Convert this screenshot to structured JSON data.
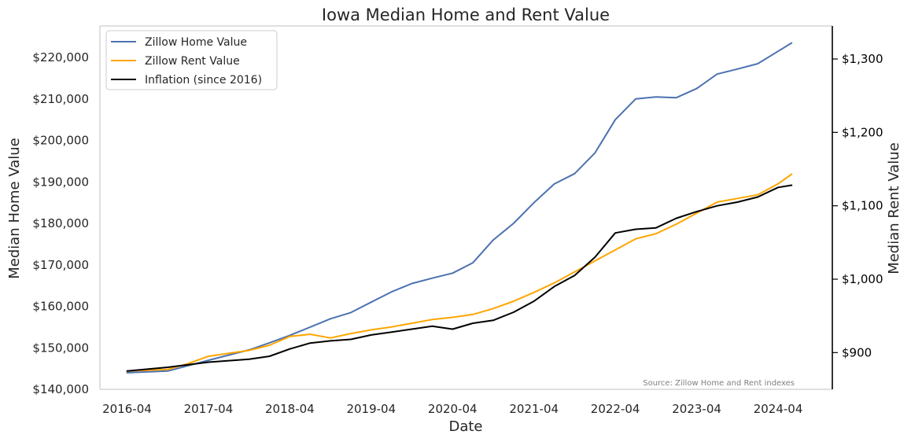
{
  "chart_data": {
    "type": "line",
    "title": "Iowa Median Home and Rent Value",
    "xlabel": "Date",
    "ylabel_left": "Median Home Value",
    "ylabel_right": "Median Rent Value",
    "source_note": "Source: Zillow Home and Rent indexes",
    "x_ticks": [
      "2016-04",
      "2017-04",
      "2018-04",
      "2019-04",
      "2020-04",
      "2021-04",
      "2022-04",
      "2023-04",
      "2024-04"
    ],
    "x_range": [
      "2015-12",
      "2024-12"
    ],
    "y_left": {
      "range": [
        140000,
        227600
      ],
      "ticks": [
        140000,
        150000,
        160000,
        170000,
        180000,
        190000,
        200000,
        210000,
        220000
      ],
      "tick_labels": [
        "$140,000",
        "$150,000",
        "$160,000",
        "$170,000",
        "$180,000",
        "$190,000",
        "$200,000",
        "$210,000",
        "$220,000"
      ]
    },
    "y_right": {
      "range": [
        850,
        1345
      ],
      "ticks": [
        900,
        1000,
        1100,
        1200,
        1300
      ],
      "tick_labels": [
        "$900",
        "$1,000",
        "$1,100",
        "$1,200",
        "$1,300"
      ]
    },
    "grid": false,
    "legend_position": "top-left",
    "legend": [
      {
        "label": "Zillow Home Value",
        "color": "#4c72b0"
      },
      {
        "label": "Zillow Rent Value",
        "color": "#ffa500"
      },
      {
        "label": "Inflation (since 2016)",
        "color": "#000000"
      }
    ],
    "series": [
      {
        "name": "Zillow Home Value",
        "axis": "left",
        "color": "#4c72b0",
        "points": [
          [
            "2016-04",
            144000
          ],
          [
            "2016-10",
            144400
          ],
          [
            "2017-04",
            147000
          ],
          [
            "2017-10",
            149500
          ],
          [
            "2018-01",
            151200
          ],
          [
            "2018-04",
            153000
          ],
          [
            "2018-07",
            155000
          ],
          [
            "2018-10",
            157000
          ],
          [
            "2019-01",
            158500
          ],
          [
            "2019-04",
            161000
          ],
          [
            "2019-07",
            163500
          ],
          [
            "2019-10",
            165500
          ],
          [
            "2020-01",
            166800
          ],
          [
            "2020-04",
            168000
          ],
          [
            "2020-07",
            170500
          ],
          [
            "2020-10",
            176000
          ],
          [
            "2021-01",
            180000
          ],
          [
            "2021-04",
            185000
          ],
          [
            "2021-07",
            189500
          ],
          [
            "2021-10",
            192000
          ],
          [
            "2022-01",
            197000
          ],
          [
            "2022-04",
            205000
          ],
          [
            "2022-07",
            210000
          ],
          [
            "2022-10",
            210500
          ],
          [
            "2023-01",
            210300
          ],
          [
            "2023-04",
            212500
          ],
          [
            "2023-07",
            216000
          ],
          [
            "2023-10",
            217200
          ],
          [
            "2024-01",
            218500
          ],
          [
            "2024-04",
            221500
          ],
          [
            "2024-06",
            223500
          ]
        ]
      },
      {
        "name": "Zillow Rent Value",
        "axis": "right",
        "color": "#ffa500",
        "points": [
          [
            "2016-04",
            875
          ],
          [
            "2016-10",
            877
          ],
          [
            "2017-01",
            885
          ],
          [
            "2017-04",
            895
          ],
          [
            "2017-10",
            903
          ],
          [
            "2018-01",
            910
          ],
          [
            "2018-04",
            922
          ],
          [
            "2018-07",
            925
          ],
          [
            "2018-10",
            920
          ],
          [
            "2019-01",
            926
          ],
          [
            "2019-04",
            931
          ],
          [
            "2019-07",
            935
          ],
          [
            "2019-10",
            940
          ],
          [
            "2020-01",
            945
          ],
          [
            "2020-04",
            948
          ],
          [
            "2020-07",
            952
          ],
          [
            "2020-10",
            960
          ],
          [
            "2021-01",
            970
          ],
          [
            "2021-04",
            982
          ],
          [
            "2021-07",
            995
          ],
          [
            "2021-10",
            1010
          ],
          [
            "2022-01",
            1025
          ],
          [
            "2022-04",
            1040
          ],
          [
            "2022-07",
            1055
          ],
          [
            "2022-10",
            1062
          ],
          [
            "2023-01",
            1075
          ],
          [
            "2023-04",
            1090
          ],
          [
            "2023-07",
            1105
          ],
          [
            "2023-10",
            1110
          ],
          [
            "2024-01",
            1115
          ],
          [
            "2024-04",
            1130
          ],
          [
            "2024-06",
            1143
          ]
        ]
      },
      {
        "name": "Inflation (since 2016)",
        "axis": "right",
        "color": "#000000",
        "points": [
          [
            "2016-04",
            875
          ],
          [
            "2016-10",
            880
          ],
          [
            "2017-04",
            887
          ],
          [
            "2017-10",
            891
          ],
          [
            "2018-01",
            895
          ],
          [
            "2018-04",
            905
          ],
          [
            "2018-07",
            913
          ],
          [
            "2018-10",
            916
          ],
          [
            "2019-01",
            918
          ],
          [
            "2019-04",
            924
          ],
          [
            "2019-07",
            928
          ],
          [
            "2019-10",
            932
          ],
          [
            "2020-01",
            936
          ],
          [
            "2020-04",
            932
          ],
          [
            "2020-07",
            940
          ],
          [
            "2020-10",
            944
          ],
          [
            "2021-01",
            955
          ],
          [
            "2021-04",
            970
          ],
          [
            "2021-07",
            990
          ],
          [
            "2021-10",
            1005
          ],
          [
            "2022-01",
            1030
          ],
          [
            "2022-04",
            1063
          ],
          [
            "2022-07",
            1068
          ],
          [
            "2022-10",
            1070
          ],
          [
            "2023-01",
            1083
          ],
          [
            "2023-04",
            1092
          ],
          [
            "2023-07",
            1100
          ],
          [
            "2023-10",
            1105
          ],
          [
            "2024-01",
            1112
          ],
          [
            "2024-04",
            1125
          ],
          [
            "2024-06",
            1128
          ]
        ]
      }
    ]
  }
}
